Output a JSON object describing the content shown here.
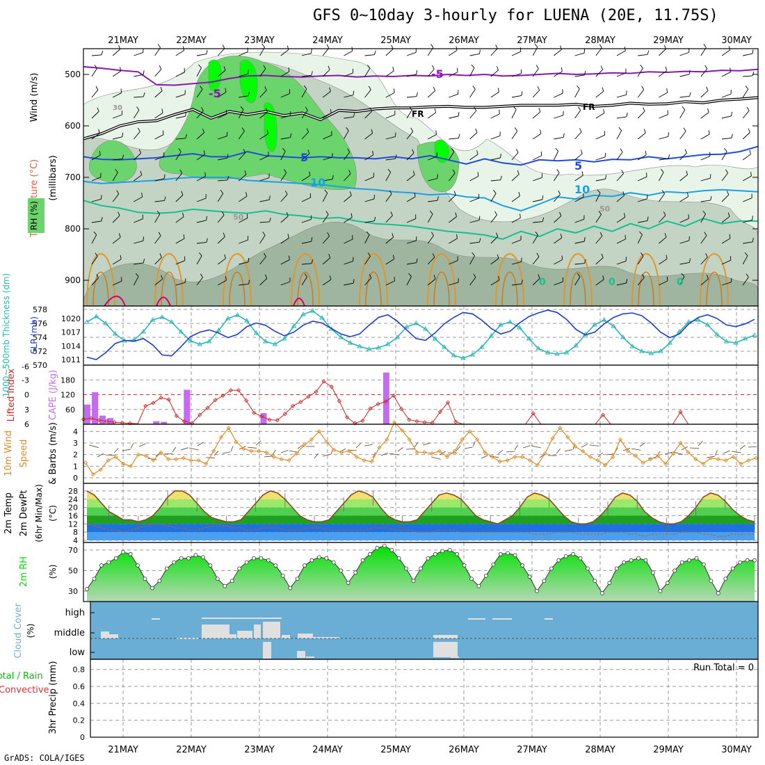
{
  "title": "GFS 0~10day 3-hourly for LUENA (20E, 11.75S)",
  "footer": "GrADS: COLA/IGES",
  "colors": {
    "rh_light": "#e8f4e8",
    "rh_mid": "#c4d4c4",
    "rh_green": "#6cd46c",
    "rh_bright": "#00ff00",
    "thickness": "#2ab5b5",
    "slp": "#1c3cc8",
    "lifted": "#d42020",
    "cape": "#c46cf0",
    "wind10": "#e08a20",
    "rh2m": "#00dd00",
    "cloud_bg": "#6aaed6",
    "cloud_bar": "#e0e0e0"
  },
  "chart_data": [
    {
      "panel": "upper_air",
      "type": "heatmap",
      "ylabel_wind": "Wind (m/s)",
      "ylabel_temp": "Temperature (°C)",
      "ylabel_rh": "RH (%)",
      "ylabel_axis": "(millibars)",
      "yticks": [
        500,
        600,
        700,
        800,
        900
      ],
      "ylim": [
        450,
        950
      ],
      "x_dates": [
        "21MAY",
        "22MAY",
        "23MAY",
        "24MAY",
        "25MAY",
        "26MAY",
        "27MAY",
        "28MAY",
        "29MAY",
        "30MAY"
      ],
      "contour_labels": [
        "-5",
        "-5",
        "FR",
        "FR",
        "5",
        "5",
        "10",
        "10",
        "30",
        "50",
        "50",
        "0",
        "0",
        "0"
      ],
      "isotherms": [
        {
          "name": "-5",
          "color": "#8c14b4",
          "p": [
            485,
            488,
            492,
            495,
            520,
            521,
            518,
            515,
            508,
            503,
            502,
            504,
            505,
            503,
            502,
            505,
            503,
            504,
            502,
            503,
            500,
            502,
            500,
            503,
            502,
            500,
            498,
            500,
            499,
            497,
            498,
            495,
            496,
            494,
            495,
            492,
            493,
            490
          ]
        },
        {
          "name": "FR",
          "color": "#000000",
          "p": [
            625,
            615,
            600,
            592,
            590,
            578,
            568,
            585,
            572,
            578,
            572,
            580,
            575,
            588,
            570,
            572,
            567,
            565,
            565,
            563,
            562,
            564,
            564,
            562,
            560,
            560,
            560,
            558,
            562,
            560,
            556,
            558,
            557,
            553,
            555,
            550,
            548,
            545
          ]
        },
        {
          "name": "5",
          "color": "#1f4ae0",
          "p": [
            660,
            665,
            666,
            664,
            662,
            658,
            654,
            660,
            660,
            650,
            658,
            660,
            662,
            660,
            662,
            662,
            664,
            660,
            664,
            658,
            666,
            674,
            664,
            672,
            676,
            666,
            668,
            666,
            670,
            665,
            666,
            660,
            664,
            660,
            656,
            655,
            650,
            640
          ]
        },
        {
          "name": "10",
          "color": "#1aa0e6",
          "p": [
            708,
            712,
            710,
            708,
            706,
            702,
            700,
            700,
            700,
            706,
            708,
            710,
            712,
            714,
            718,
            722,
            724,
            728,
            730,
            734,
            732,
            738,
            740,
            755,
            765,
            752,
            738,
            742,
            735,
            737,
            730,
            735,
            728,
            730,
            726,
            724,
            726,
            728
          ]
        },
        {
          "name": "15",
          "color": "#14c08c",
          "p": [
            745,
            755,
            760,
            768,
            770,
            768,
            762,
            765,
            768,
            770,
            765,
            772,
            775,
            780,
            778,
            785,
            790,
            792,
            795,
            800,
            805,
            808,
            812,
            820,
            805,
            815,
            800,
            808,
            795,
            805,
            790,
            800,
            785,
            795,
            780,
            790,
            785,
            785
          ]
        }
      ]
    },
    {
      "panel": "thickness_slp",
      "type": "line",
      "ylabel_left": "1000~500mb Thickness (dm)",
      "ylabel_right": "SLP (mb)",
      "yticks_left": [
        570,
        572,
        574,
        576,
        578
      ],
      "yticks_right": [
        1011,
        1014,
        1017,
        1020
      ],
      "series": [
        {
          "name": "1000~500mb Thickness (dm)",
          "color": "#2ab5b5",
          "axis": "left",
          "values": [
            576.2,
            577.0,
            576.0,
            574.5,
            573.5,
            573.6,
            574.8,
            576.5,
            576.9,
            576.2,
            574.8,
            573.5,
            573.0,
            573.4,
            575.0,
            576.7,
            577.2,
            576.4,
            574.6,
            573.4,
            573.0,
            573.8,
            575.6,
            577.3,
            577.8,
            576.8,
            575.2,
            574.0,
            573.2,
            572.7,
            572.3,
            572.5,
            573.0,
            574.0,
            575.5,
            576.0,
            575.2,
            573.8,
            572.6,
            571.4,
            571.0,
            571.5,
            572.6,
            574.2,
            575.8,
            576.2,
            575.4,
            573.8,
            572.4,
            571.8,
            571.6,
            571.8,
            572.8,
            574.4,
            575.8,
            576.5,
            575.6,
            574.0,
            572.7,
            572.0,
            571.7,
            572.0,
            573.2,
            574.8,
            576.2,
            576.5,
            575.8,
            574.4,
            573.4,
            573.2,
            573.8,
            574.3
          ]
        },
        {
          "name": "SLP (mb)",
          "color": "#1c3cc8",
          "axis": "right",
          "values": [
            1011.5,
            1011.0,
            1012.5,
            1014.5,
            1015.2,
            1015.0,
            1015.6,
            1014.2,
            1012.0,
            1011.8,
            1013.8,
            1016.0,
            1017.0,
            1017.5,
            1016.8,
            1015.8,
            1016.5,
            1018.2,
            1019.0,
            1018.5,
            1017.2,
            1016.2,
            1017.0,
            1018.5,
            1019.4,
            1019.0,
            1017.8,
            1016.6,
            1016.0,
            1016.6,
            1018.5,
            1020.2,
            1020.8,
            1019.4,
            1017.5,
            1015.6,
            1015.2,
            1016.8,
            1018.8,
            1020.2,
            1021.3,
            1021.0,
            1019.6,
            1017.8,
            1016.6,
            1017.2,
            1019.0,
            1020.4,
            1021.2,
            1021.8,
            1021.3,
            1019.8,
            1017.6,
            1016.4,
            1017.0,
            1018.8,
            1020.2,
            1021.0,
            1021.2,
            1020.6,
            1019.0,
            1017.0,
            1015.8,
            1016.6,
            1018.8,
            1020.2,
            1020.8,
            1020.0,
            1018.6,
            1018.2,
            1018.8,
            1019.8
          ]
        }
      ]
    },
    {
      "panel": "lifted_cape",
      "type": "bar",
      "ylabel_left": "Lifted Index",
      "ylabel_right": "CAPE (J/kg)",
      "yticks_left": [
        -3,
        0,
        3,
        6
      ],
      "ytick_top_left": "-6",
      "yticks_right": [
        60,
        120,
        180
      ],
      "series": [
        {
          "name": "Lifted Index",
          "color": "#d42020",
          "axis": "left",
          "values": [
            5.0,
            4.8,
            5.2,
            5.4,
            5.6,
            5.7,
            5.8,
            5.9,
            2.3,
            1.7,
            0.6,
            1.0,
            4.3,
            5.4,
            5.8,
            4.1,
            2.7,
            1.1,
            0.2,
            -0.9,
            -0.9,
            1.2,
            3.7,
            4.4,
            5.1,
            5.2,
            3.9,
            2.3,
            1.5,
            0.4,
            -0.6,
            -2.7,
            -1.6,
            1.3,
            4.6,
            5.8,
            5.3,
            2.8,
            1.9,
            1.4,
            0.2,
            2.9,
            5.1,
            5.4,
            5.6,
            5.7,
            3.5,
            1.6,
            5.5,
            6.0,
            6.0,
            6.0,
            6.0,
            6.0,
            6.0,
            6.0,
            6.0,
            6.0,
            3.8,
            6.0,
            6.0,
            6.0,
            6.0,
            6.0,
            6.0,
            6.0,
            6.0,
            4.1,
            6.0,
            6.0,
            6.0,
            6.0,
            6.0,
            6.0,
            6.0,
            6.0,
            6.0,
            3.5,
            6.0,
            6.0,
            6.0,
            6.0,
            6.0,
            6.0,
            6.0,
            6.0,
            6.0,
            6.0
          ]
        },
        {
          "name": "CAPE (J/kg)",
          "color": "#c46cf0",
          "axis": "right",
          "values": [
            80,
            130,
            35,
            25,
            0,
            0,
            0,
            0,
            0,
            12,
            10,
            0,
            0,
            140,
            0,
            0,
            0,
            0,
            0,
            0,
            0,
            0,
            0,
            45,
            0,
            0,
            0,
            0,
            0,
            0,
            0,
            0,
            0,
            0,
            0,
            0,
            0,
            0,
            0,
            210,
            0,
            0,
            0,
            0,
            0,
            0,
            0,
            0,
            0,
            0,
            0,
            0,
            0,
            0,
            0,
            0,
            0,
            0,
            0,
            0,
            0,
            0,
            0,
            0,
            0,
            0,
            0,
            0,
            0,
            0,
            0,
            0,
            0,
            0,
            0,
            0,
            0,
            0,
            0,
            0,
            0,
            0,
            0,
            0,
            0,
            0,
            0,
            0
          ]
        }
      ]
    },
    {
      "panel": "wind10m",
      "type": "line",
      "ylabel": "10m Wind Speed & Barbs (m/s)",
      "yticks": [
        0,
        1,
        2,
        3,
        4
      ],
      "series": [
        {
          "name": "10m Wind Speed",
          "color": "#e08a20",
          "values": [
            1.3,
            0.3,
            0.7,
            1.5,
            1.8,
            1.2,
            1.0,
            2.0,
            1.9,
            1.5,
            2.2,
            1.6,
            1.6,
            1.7,
            1.5,
            1.5,
            1.2,
            2.3,
            3.5,
            4.3,
            3.1,
            2.5,
            2.3,
            2.3,
            2.2,
            1.8,
            1.6,
            1.5,
            2.1,
            2.8,
            3.3,
            4.0,
            3.1,
            2.4,
            2.2,
            2.3,
            1.8,
            1.5,
            1.4,
            2.6,
            3.3,
            4.8,
            4.1,
            3.3,
            2.2,
            2.2,
            2.1,
            2.3,
            1.8,
            2.3,
            3.3,
            4.0,
            3.3,
            2.2,
            1.8,
            1.4,
            1.5,
            1.8,
            1.8,
            1.5,
            1.1,
            2.1,
            3.4,
            4.3,
            3.5,
            2.7,
            2.3,
            1.8,
            1.5,
            1.1,
            1.8,
            3.3,
            2.3,
            1.9,
            1.3,
            1.6,
            1.9,
            1.2,
            2.1,
            3.0,
            2.2,
            1.6,
            1.2,
            1.7,
            1.6,
            1.5,
            1.8,
            1.2,
            1.5,
            1.7
          ]
        }
      ]
    },
    {
      "panel": "temp2m",
      "type": "area",
      "ylabel": "2m Temp 2m DewPt (6hr Min/Max) (°C)",
      "yticks": [
        4,
        8,
        12,
        16,
        20,
        24,
        28
      ],
      "series": [
        {
          "name": "2m Temp",
          "color": "#8a4a20",
          "values": [
            28,
            26,
            22,
            18,
            16,
            14,
            14,
            13,
            14,
            16,
            20,
            25,
            28,
            28,
            26,
            22,
            18,
            15,
            14,
            13,
            13,
            14,
            18,
            22,
            26,
            28,
            27,
            24,
            20,
            16,
            14,
            13,
            13,
            14,
            18,
            22,
            26,
            28,
            27,
            25,
            20,
            16,
            14,
            13,
            13,
            14,
            18,
            22,
            26,
            27,
            26,
            24,
            20,
            16,
            14,
            13,
            12,
            14,
            16,
            20,
            25,
            27,
            26,
            24,
            20,
            16,
            13,
            12,
            12,
            13,
            16,
            20,
            25,
            27,
            26,
            23,
            18,
            15,
            13,
            12,
            12,
            13,
            16,
            20,
            25,
            27,
            26,
            23,
            19,
            16,
            14,
            13
          ]
        },
        {
          "name": "2m DewPt",
          "color": "#c06020",
          "values": [
            12,
            11,
            10,
            9,
            9,
            8,
            9,
            10,
            11,
            12,
            12,
            11,
            10,
            10,
            9,
            9,
            10,
            11,
            11,
            11,
            10,
            10,
            9,
            9,
            10,
            10,
            10,
            9,
            9,
            9,
            10,
            10,
            10,
            9,
            9,
            9,
            9,
            9,
            9,
            10,
            10,
            10,
            9,
            9,
            9,
            8,
            8,
            8,
            9,
            9,
            9,
            8,
            8,
            8,
            8,
            8,
            8,
            8,
            8,
            8,
            8,
            7,
            7,
            7,
            8,
            8,
            8,
            7,
            7,
            7,
            7,
            8,
            8,
            8,
            7,
            7,
            6,
            7,
            7,
            7,
            7,
            8,
            8,
            8,
            7,
            7,
            6,
            6,
            7,
            7,
            7,
            7
          ]
        }
      ]
    },
    {
      "panel": "rh2m",
      "type": "area",
      "ylabel": "2m RH (%)",
      "yticks": [
        30,
        50,
        70
      ],
      "series": [
        {
          "name": "2m RH",
          "color": "#00dd00",
          "values": [
            32,
            42,
            55,
            58,
            62,
            68,
            66,
            55,
            42,
            33,
            40,
            52,
            58,
            62,
            62,
            65,
            63,
            55,
            42,
            35,
            40,
            52,
            58,
            62,
            62,
            60,
            55,
            45,
            33,
            42,
            55,
            60,
            63,
            62,
            58,
            50,
            38,
            48,
            60,
            66,
            72,
            74,
            70,
            62,
            52,
            40,
            52,
            62,
            66,
            69,
            70,
            66,
            55,
            42,
            35,
            45,
            56,
            66,
            67,
            65,
            55,
            44,
            30,
            40,
            52,
            60,
            64,
            66,
            62,
            52,
            40,
            28,
            38,
            52,
            58,
            60,
            62,
            60,
            48,
            30,
            38,
            50,
            58,
            60,
            62,
            56,
            40,
            28,
            42,
            52,
            58,
            60,
            60
          ]
        }
      ]
    },
    {
      "panel": "cloud",
      "type": "bar",
      "ylabel": "Cloud Cover (%)",
      "yticks": [
        "high",
        "middle",
        "low"
      ]
    },
    {
      "panel": "precip",
      "type": "line",
      "ylabel_total": "Total / Rain",
      "ylabel_conv": "Convective",
      "ylabel": "3hr Precip (mm)",
      "yticks": [
        0,
        0.2,
        0.4,
        0.6,
        0.8
      ],
      "annotation": "Run Total = 0",
      "series": []
    }
  ]
}
